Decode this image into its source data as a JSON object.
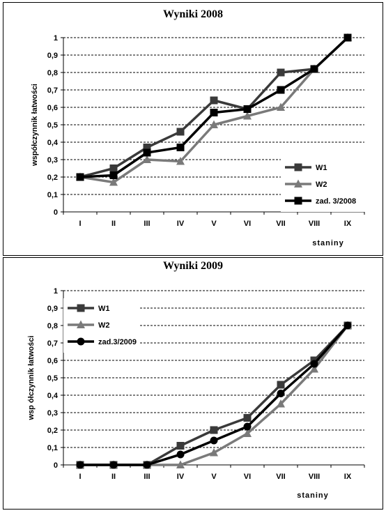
{
  "chart_data": [
    {
      "type": "line",
      "title": "Wyniki 2008",
      "xlabel": "staniny",
      "ylabel": "współczynnik łatwości",
      "categories": [
        "I",
        "II",
        "III",
        "IV",
        "V",
        "VI",
        "VII",
        "VIII",
        "IX"
      ],
      "ylim": [
        0,
        1
      ],
      "yticks": [
        "0",
        "0,1",
        "0,2",
        "0,3",
        "0,4",
        "0,5",
        "0,6",
        "0,7",
        "0,8",
        "0,9",
        "1"
      ],
      "grid": true,
      "legend_position": "bottom-right",
      "series": [
        {
          "name": "W1",
          "values": [
            0.2,
            0.25,
            0.37,
            0.46,
            0.64,
            0.59,
            0.8,
            0.82,
            1.0
          ],
          "color": "#3a3a3a",
          "marker": "square"
        },
        {
          "name": "W2",
          "values": [
            0.2,
            0.17,
            0.3,
            0.29,
            0.5,
            0.55,
            0.6,
            0.82,
            1.0
          ],
          "color": "#7a7a7a",
          "marker": "triangle"
        },
        {
          "name": "zad. 3/2008",
          "values": [
            0.2,
            0.21,
            0.34,
            0.37,
            0.57,
            0.59,
            0.7,
            0.82,
            1.0
          ],
          "color": "#000000",
          "marker": "square"
        }
      ]
    },
    {
      "type": "line",
      "title": "Wyniki 2009",
      "xlabel": "staniny",
      "ylabel": "wsp ółczynnik łatwości",
      "categories": [
        "I",
        "II",
        "III",
        "IV",
        "V",
        "VI",
        "VII",
        "VIII",
        "IX"
      ],
      "ylim": [
        0,
        1
      ],
      "yticks": [
        "0",
        "0,1",
        "0,2",
        "0,3",
        "0,4",
        "0,5",
        "0,6",
        "0,7",
        "0,8",
        "0,9",
        "1"
      ],
      "grid": true,
      "legend_position": "top-left",
      "series": [
        {
          "name": "W1",
          "values": [
            0,
            0,
            0,
            0.11,
            0.2,
            0.27,
            0.46,
            0.6,
            0.8
          ],
          "color": "#3a3a3a",
          "marker": "square"
        },
        {
          "name": "W2",
          "values": [
            0,
            0,
            0,
            0.0,
            0.07,
            0.18,
            0.35,
            0.55,
            0.8
          ],
          "color": "#7a7a7a",
          "marker": "triangle"
        },
        {
          "name": "zad.3/2009",
          "values": [
            0,
            0,
            0,
            0.06,
            0.14,
            0.22,
            0.41,
            0.58,
            0.8
          ],
          "color": "#000000",
          "marker": "circle"
        }
      ]
    }
  ]
}
